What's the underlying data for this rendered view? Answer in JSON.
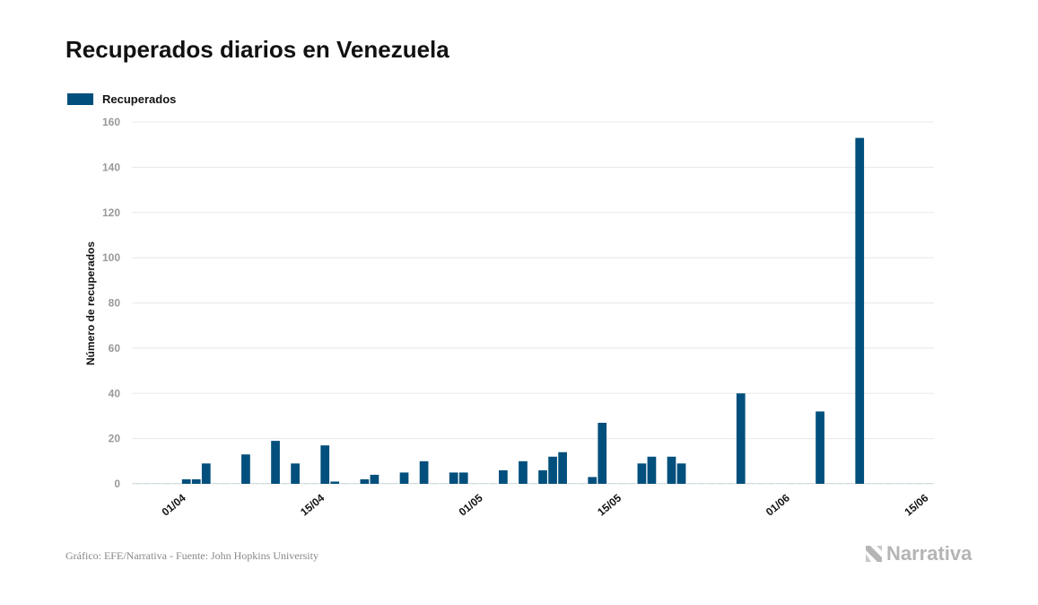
{
  "title": "Recuperados diarios en Venezuela",
  "footer": "Gráfico: EFE/Narrativa - Fuente: John Hopkins University",
  "brand": "Narrativa",
  "colors": {
    "bar": "#004f7c",
    "grid": "#e8e8e8",
    "tick": "#999999"
  },
  "chart_data": {
    "type": "bar",
    "ylabel": "Número de recuperados",
    "ylim": [
      0,
      160
    ],
    "yticks": [
      0,
      20,
      40,
      60,
      80,
      100,
      120,
      140,
      160
    ],
    "xticks": [
      "01/04",
      "15/04",
      "01/05",
      "15/05",
      "01/06",
      "15/06"
    ],
    "x_start": "27/03",
    "series": [
      {
        "name": "Recuperados",
        "values": [
          0,
          0,
          0,
          0,
          0,
          2,
          2,
          9,
          0,
          0,
          0,
          13,
          0,
          0,
          19,
          0,
          9,
          0,
          0,
          17,
          1,
          0,
          0,
          2,
          4,
          0,
          0,
          5,
          0,
          10,
          0,
          0,
          5,
          5,
          0,
          0,
          0,
          6,
          0,
          10,
          0,
          6,
          12,
          14,
          0,
          0,
          3,
          27,
          0,
          0,
          0,
          9,
          12,
          0,
          12,
          9,
          0,
          0,
          0,
          0,
          0,
          40,
          0,
          0,
          0,
          0,
          0,
          0,
          0,
          32,
          0,
          0,
          0,
          153,
          0,
          0,
          0,
          0,
          0,
          0,
          0
        ]
      }
    ]
  }
}
